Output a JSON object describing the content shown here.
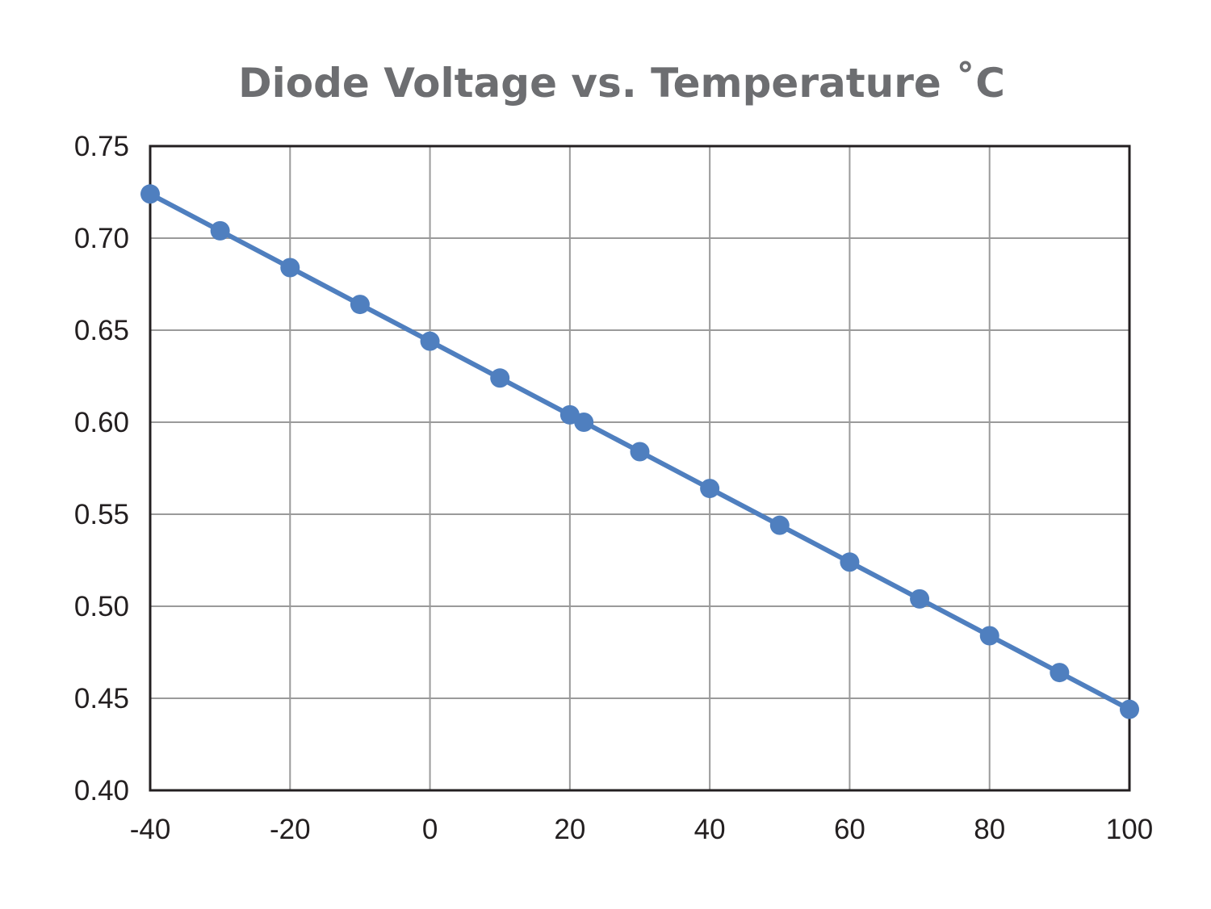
{
  "chart_data": {
    "type": "line",
    "title": "Diode Voltage vs. Temperature ˚C",
    "xlabel": "",
    "ylabel": "",
    "xlim": [
      -40,
      100
    ],
    "ylim": [
      0.4,
      0.75
    ],
    "x_ticks": [
      "-40",
      "-20",
      "0",
      "20",
      "40",
      "60",
      "80",
      "100"
    ],
    "y_ticks": [
      "0.75",
      "0.70",
      "0.65",
      "0.60",
      "0.55",
      "0.50",
      "0.45",
      "0.40"
    ],
    "grid": true,
    "colors": {
      "series": "#4f7fbf",
      "grid": "#9a9a9a",
      "frame": "#231f20"
    },
    "series": [
      {
        "x": [
          -40,
          -30,
          -20,
          -10,
          0,
          10,
          20,
          22,
          30,
          40,
          50,
          60,
          70,
          80,
          90,
          100
        ],
        "y": [
          0.724,
          0.704,
          0.684,
          0.664,
          0.644,
          0.624,
          0.604,
          0.6,
          0.584,
          0.564,
          0.544,
          0.524,
          0.504,
          0.484,
          0.464,
          0.444
        ]
      }
    ]
  }
}
